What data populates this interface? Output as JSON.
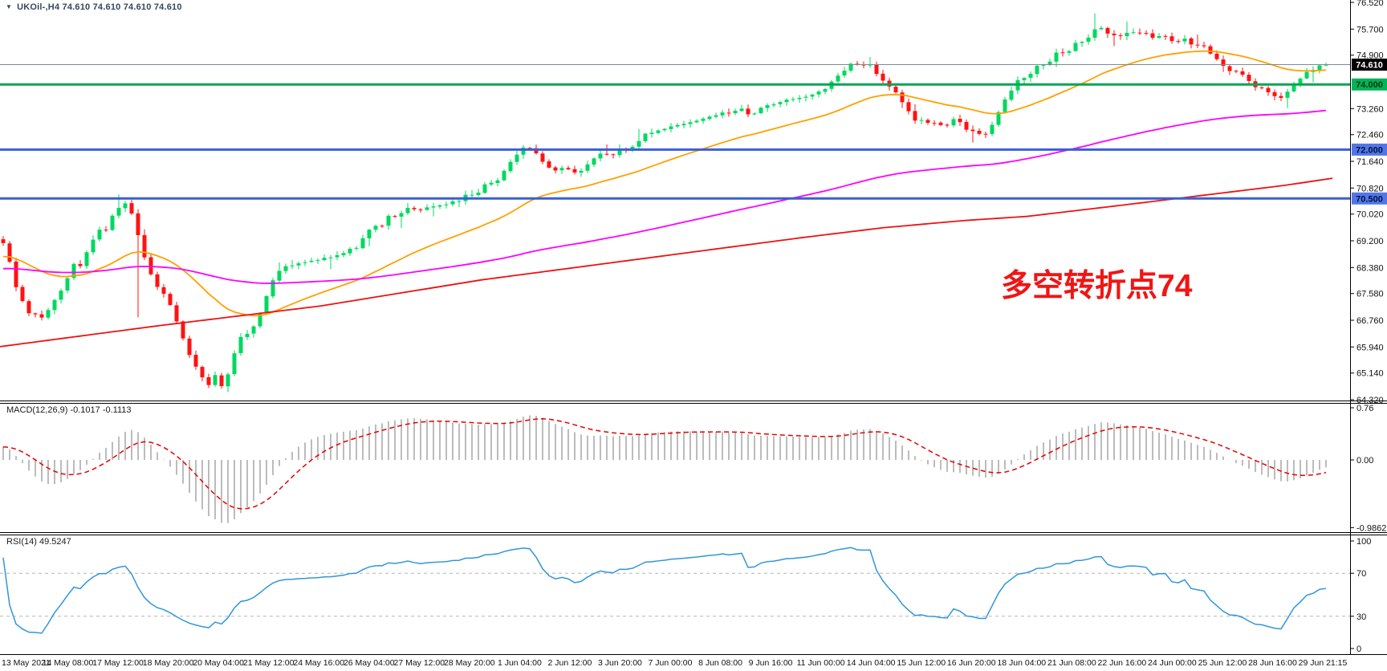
{
  "window": {
    "arrow": "▼",
    "title": "UKOil-,H4  74.610 74.610 74.610 74.610",
    "symbol": "UKOil-",
    "timeframe": "H4"
  },
  "annotation": {
    "text": "多空转折点74",
    "color": "#f01515"
  },
  "panels": {
    "macd": {
      "label": "MACD(12,26,9) -0.1017 -0.1113",
      "ticks": [
        {
          "v": 0.76,
          "t": "0.76"
        },
        {
          "v": 0,
          "t": "0.00"
        },
        {
          "v": -0.9862,
          "t": "-0.9862"
        }
      ]
    },
    "rsi": {
      "label": "RSI(14) 49.5247",
      "ticks": [
        {
          "v": 100,
          "t": "100"
        },
        {
          "v": 70,
          "t": "70"
        },
        {
          "v": 30,
          "t": "30"
        },
        {
          "v": 0,
          "t": "0"
        }
      ],
      "levels": [
        70,
        30
      ]
    }
  },
  "colors": {
    "candle_up": "#00d85f",
    "candle_down": "#ff1212",
    "ma_fast": "#ffa000",
    "ma_mid": "#ff00ff",
    "ma_slow": "#ee1111",
    "macd_hist": "#bcbcbc",
    "macd_signal": "#e60000",
    "rsi_line": "#2f96dc",
    "rsi_level": "#b5b5b5",
    "axis_text": "#111111",
    "border": "#000000",
    "current_price_line": "#7a8a99"
  },
  "time_axis": {
    "labels": [
      "13 May 2021",
      "14 May 08:00",
      "17 May 12:00",
      "18 May 20:00",
      "20 May 04:00",
      "21 May 12:00",
      "24 May 16:00",
      "26 May 04:00",
      "27 May 12:00",
      "28 May 20:00",
      "1 Jun 04:00",
      "2 Jun 12:00",
      "3 Jun 20:00",
      "7 Jun 00:00",
      "8 Jun 08:00",
      "9 Jun 16:00",
      "11 Jun 00:00",
      "14 Jun 04:00",
      "15 Jun 12:00",
      "16 Jun 20:00",
      "18 Jun 04:00",
      "21 Jun 08:00",
      "22 Jun 16:00",
      "24 Jun 00:00",
      "25 Jun 12:00",
      "28 Jun 16:00",
      "29 Jun 21:15"
    ]
  },
  "chart_data": {
    "type": "candlestick",
    "symbol": "UKOil-",
    "timeframe": "H4",
    "title": "UKOil-,H4 74.610 74.610 74.610 74.610",
    "price_ticks": [
      "76.520",
      "75.700",
      "74.900",
      "73.260",
      "72.460",
      "71.640",
      "70.820",
      "70.020",
      "69.200",
      "68.380",
      "67.580",
      "66.760",
      "65.940",
      "65.140",
      "64.320"
    ],
    "ylim": [
      64.32,
      76.52
    ],
    "last_price": 74.61,
    "hlines": [
      {
        "price": 74.61,
        "color": "#7a8a99",
        "width": 1,
        "tag": {
          "text": "74.610",
          "bg": "#000000",
          "fg": "#ffffff"
        }
      },
      {
        "price": 74.0,
        "color": "#00a651",
        "width": 3,
        "tag": {
          "text": "74.000",
          "bg": "#00b457",
          "fg": "#003510"
        }
      },
      {
        "price": 72.0,
        "color": "#3a5fd9",
        "width": 3,
        "tag": {
          "text": "72.000",
          "bg": "#5276e8",
          "fg": "#00123d"
        }
      },
      {
        "price": 70.5,
        "color": "#3a5fd9",
        "width": 3,
        "tag": {
          "text": "70.500",
          "bg": "#5276e8",
          "fg": "#00123d"
        }
      }
    ],
    "close_path": [
      [
        0,
        69.25
      ],
      [
        8,
        68.95
      ],
      [
        14,
        68.4
      ],
      [
        20,
        67.8
      ],
      [
        26,
        67.45
      ],
      [
        33,
        67.05
      ],
      [
        40,
        66.85
      ],
      [
        47,
        67.05
      ],
      [
        54,
        66.8
      ],
      [
        61,
        67.1
      ],
      [
        68,
        67.35
      ],
      [
        76,
        67.7
      ],
      [
        84,
        68.05
      ],
      [
        92,
        68.45
      ],
      [
        100,
        68.4
      ],
      [
        108,
        68.85
      ],
      [
        116,
        69.2
      ],
      [
        124,
        69.55
      ],
      [
        132,
        69.5
      ],
      [
        140,
        69.95
      ],
      [
        148,
        70.2
      ],
      [
        156,
        70.35
      ],
      [
        163,
        70.1
      ],
      [
        170,
        69.6
      ],
      [
        177,
        68.9
      ],
      [
        184,
        68.35
      ],
      [
        191,
        68.0
      ],
      [
        198,
        67.75
      ],
      [
        205,
        67.5
      ],
      [
        212,
        67.2
      ],
      [
        219,
        66.8
      ],
      [
        226,
        66.35
      ],
      [
        233,
        65.85
      ],
      [
        240,
        65.5
      ],
      [
        247,
        65.2
      ],
      [
        254,
        64.95
      ],
      [
        260,
        64.8
      ],
      [
        266,
        65.2
      ],
      [
        272,
        64.85
      ],
      [
        278,
        64.7
      ],
      [
        284,
        65.1
      ],
      [
        290,
        65.6
      ],
      [
        297,
        66.1
      ],
      [
        304,
        66.45
      ],
      [
        311,
        66.3
      ],
      [
        318,
        66.65
      ],
      [
        325,
        67.05
      ],
      [
        332,
        67.5
      ],
      [
        339,
        67.95
      ],
      [
        346,
        68.25
      ],
      [
        353,
        68.45
      ],
      [
        360,
        68.3
      ],
      [
        368,
        68.55
      ],
      [
        376,
        68.4
      ],
      [
        384,
        68.65
      ],
      [
        392,
        68.5
      ],
      [
        400,
        68.75
      ],
      [
        408,
        68.6
      ],
      [
        416,
        68.85
      ],
      [
        424,
        68.7
      ],
      [
        432,
        69.0
      ],
      [
        440,
        68.85
      ],
      [
        448,
        69.15
      ],
      [
        456,
        69.45
      ],
      [
        464,
        69.7
      ],
      [
        472,
        69.55
      ],
      [
        480,
        69.85
      ],
      [
        488,
        70.05
      ],
      [
        496,
        69.9
      ],
      [
        504,
        70.15
      ],
      [
        512,
        70.25
      ],
      [
        520,
        70.05
      ],
      [
        528,
        70.3
      ],
      [
        536,
        70.1
      ],
      [
        544,
        70.35
      ],
      [
        552,
        70.2
      ],
      [
        560,
        70.45
      ],
      [
        568,
        70.3
      ],
      [
        576,
        70.5
      ],
      [
        584,
        70.65
      ],
      [
        592,
        70.55
      ],
      [
        600,
        70.85
      ],
      [
        608,
        71.05
      ],
      [
        616,
        70.9
      ],
      [
        624,
        71.2
      ],
      [
        632,
        71.5
      ],
      [
        640,
        71.75
      ],
      [
        648,
        71.95
      ],
      [
        656,
        72.15
      ],
      [
        664,
        71.95
      ],
      [
        672,
        71.75
      ],
      [
        680,
        71.55
      ],
      [
        688,
        71.35
      ],
      [
        696,
        71.3
      ],
      [
        704,
        71.5
      ],
      [
        712,
        71.35
      ],
      [
        720,
        71.2
      ],
      [
        728,
        71.45
      ],
      [
        736,
        71.65
      ],
      [
        744,
        71.8
      ],
      [
        752,
        71.9
      ],
      [
        760,
        71.75
      ],
      [
        768,
        71.95
      ],
      [
        776,
        72.1
      ],
      [
        784,
        72.0
      ],
      [
        792,
        72.2
      ],
      [
        800,
        72.4
      ],
      [
        808,
        72.6
      ],
      [
        816,
        72.5
      ],
      [
        824,
        72.7
      ],
      [
        832,
        72.6
      ],
      [
        840,
        72.8
      ],
      [
        848,
        72.7
      ],
      [
        856,
        72.9
      ],
      [
        864,
        72.8
      ],
      [
        872,
        73.0
      ],
      [
        880,
        72.9
      ],
      [
        888,
        73.1
      ],
      [
        896,
        73.0
      ],
      [
        904,
        73.2
      ],
      [
        912,
        73.1
      ],
      [
        920,
        73.3
      ],
      [
        928,
        73.15
      ],
      [
        936,
        73.0
      ],
      [
        944,
        73.2
      ],
      [
        952,
        73.4
      ],
      [
        960,
        73.3
      ],
      [
        968,
        73.5
      ],
      [
        976,
        73.4
      ],
      [
        984,
        73.6
      ],
      [
        992,
        73.5
      ],
      [
        1000,
        73.7
      ],
      [
        1008,
        73.6
      ],
      [
        1016,
        73.8
      ],
      [
        1024,
        73.7
      ],
      [
        1032,
        73.95
      ],
      [
        1040,
        74.15
      ],
      [
        1048,
        74.35
      ],
      [
        1056,
        74.55
      ],
      [
        1064,
        74.65
      ],
      [
        1072,
        74.5
      ],
      [
        1080,
        74.7
      ],
      [
        1088,
        74.45
      ],
      [
        1096,
        74.25
      ],
      [
        1104,
        74.05
      ],
      [
        1112,
        73.85
      ],
      [
        1120,
        73.6
      ],
      [
        1128,
        73.35
      ],
      [
        1136,
        73.05
      ],
      [
        1144,
        72.8
      ],
      [
        1152,
        72.95
      ],
      [
        1160,
        72.7
      ],
      [
        1168,
        72.9
      ],
      [
        1176,
        72.6
      ],
      [
        1184,
        72.8
      ],
      [
        1192,
        73.0
      ],
      [
        1200,
        72.75
      ],
      [
        1208,
        72.5
      ],
      [
        1216,
        72.6
      ],
      [
        1224,
        72.35
      ],
      [
        1232,
        72.6
      ],
      [
        1240,
        73.0
      ],
      [
        1248,
        73.35
      ],
      [
        1256,
        73.7
      ],
      [
        1264,
        74.0
      ],
      [
        1272,
        74.3
      ],
      [
        1280,
        74.15
      ],
      [
        1288,
        74.45
      ],
      [
        1296,
        74.7
      ],
      [
        1304,
        74.55
      ],
      [
        1312,
        74.85
      ],
      [
        1320,
        75.05
      ],
      [
        1328,
        74.9
      ],
      [
        1336,
        75.15
      ],
      [
        1344,
        75.35
      ],
      [
        1352,
        75.25
      ],
      [
        1360,
        75.6
      ],
      [
        1368,
        75.85
      ],
      [
        1376,
        75.65
      ],
      [
        1384,
        75.45
      ],
      [
        1392,
        75.6
      ],
      [
        1400,
        75.45
      ],
      [
        1408,
        75.65
      ],
      [
        1416,
        75.5
      ],
      [
        1424,
        75.7
      ],
      [
        1432,
        75.5
      ],
      [
        1440,
        75.35
      ],
      [
        1448,
        75.55
      ],
      [
        1456,
        75.4
      ],
      [
        1464,
        75.25
      ],
      [
        1472,
        75.45
      ],
      [
        1480,
        75.3
      ],
      [
        1488,
        75.1
      ],
      [
        1496,
        75.25
      ],
      [
        1504,
        75.05
      ],
      [
        1512,
        74.85
      ],
      [
        1520,
        74.65
      ],
      [
        1528,
        74.5
      ],
      [
        1536,
        74.3
      ],
      [
        1544,
        74.45
      ],
      [
        1552,
        74.2
      ],
      [
        1560,
        74.0
      ],
      [
        1568,
        73.8
      ],
      [
        1576,
        73.9
      ],
      [
        1584,
        73.7
      ],
      [
        1592,
        73.55
      ],
      [
        1600,
        73.7
      ],
      [
        1608,
        73.9
      ],
      [
        1616,
        74.1
      ],
      [
        1624,
        74.3
      ],
      [
        1632,
        74.45
      ],
      [
        1640,
        74.5
      ],
      [
        1648,
        74.61
      ]
    ],
    "warm_path": [
      [
        -320,
        68.2
      ],
      [
        -260,
        67.9
      ],
      [
        -200,
        68.1
      ],
      [
        -140,
        68.5
      ],
      [
        -80,
        68.9
      ],
      [
        -16,
        69.1
      ]
    ],
    "spike_lows": [
      [
        168,
        66.85
      ],
      [
        283,
        64.55
      ],
      [
        1210,
        72.22
      ],
      [
        1602,
        73.28
      ]
    ],
    "spike_highs": [
      [
        148,
        70.62
      ],
      [
        1366,
        76.18
      ]
    ],
    "ma_fast_period": 30,
    "ma_mid_period": 140,
    "ma_slow_path": [
      [
        0,
        65.95
      ],
      [
        200,
        66.6
      ],
      [
        400,
        67.2
      ],
      [
        600,
        68.0
      ],
      [
        800,
        68.65
      ],
      [
        1000,
        69.3
      ],
      [
        1100,
        69.6
      ],
      [
        1200,
        69.82
      ],
      [
        1280,
        69.95
      ],
      [
        1400,
        70.3
      ],
      [
        1500,
        70.6
      ],
      [
        1600,
        70.9
      ],
      [
        1660,
        71.12
      ]
    ],
    "macd": {
      "fast": 12,
      "slow": 26,
      "signal": 9,
      "last_main": -0.1017,
      "last_signal": -0.1113,
      "ylim": [
        -0.9862,
        0.76
      ]
    },
    "rsi": {
      "period": 14,
      "last": 49.5247,
      "ylim": [
        0,
        100
      ]
    }
  }
}
